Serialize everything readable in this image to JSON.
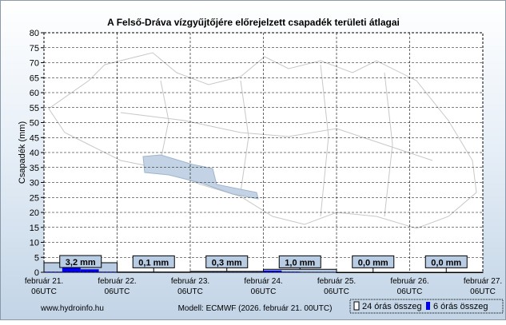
{
  "chart_data": {
    "type": "bar",
    "title": "A Felső-Dráva vízgyűjtőjére előrejelzett csapadék területi átlagai",
    "ylabel": "Csapadék (mm)",
    "ylim": [
      0,
      80
    ],
    "yticks": [
      0,
      5,
      10,
      15,
      20,
      25,
      30,
      35,
      40,
      45,
      50,
      55,
      60,
      65,
      70,
      75,
      80
    ],
    "grid": true,
    "x_ticks": [
      {
        "date": "február 21.",
        "time": "06UTC"
      },
      {
        "date": "február 22.",
        "time": "06UTC"
      },
      {
        "date": "február 23.",
        "time": "06UTC"
      },
      {
        "date": "február 24.",
        "time": "06UTC"
      },
      {
        "date": "február 25.",
        "time": "06UTC"
      },
      {
        "date": "február 26.",
        "time": "06UTC"
      },
      {
        "date": "február 27.",
        "time": "06UTC"
      }
    ],
    "series": [
      {
        "name": "24 órás összeg",
        "values": [
          3.2,
          0.1,
          0.3,
          1.0,
          0.0,
          0.0
        ],
        "labels": [
          "3,2 mm",
          "0,1 mm",
          "0,3 mm",
          "1,0 mm",
          "0,0 mm",
          "0,0 mm"
        ]
      },
      {
        "name": "6 órás összeg",
        "values": [
          0.2,
          1.8,
          1.0,
          0.2,
          0,
          0.05,
          0.05,
          0,
          0,
          0.1,
          0.1,
          0.1,
          0.6,
          0.2,
          0.1,
          0.1,
          0,
          0,
          0,
          0,
          0,
          0,
          0,
          0
        ]
      }
    ],
    "legend": "bottom-right"
  },
  "footer": {
    "site": "www.hydroinfo.hu",
    "model": "Modell: ECMWF (2026. február 21. 00UTC)"
  },
  "colors": {
    "daily": "#b8cce4",
    "six_hour": "#0000ee"
  }
}
